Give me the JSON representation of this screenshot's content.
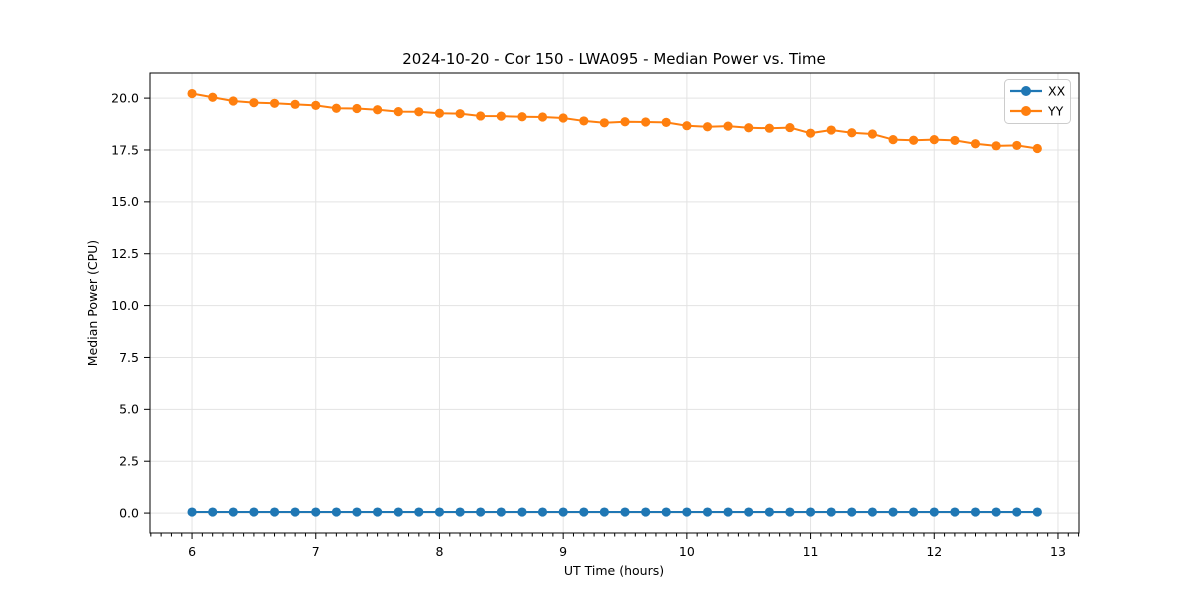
{
  "chart_data": {
    "type": "line",
    "title": "2024-10-20 - Cor 150 - LWA095 - Median Power vs. Time",
    "xlabel": "UT Time (hours)",
    "ylabel": "Median Power (CPU)",
    "xlim": [
      5.66,
      13.17
    ],
    "ylim": [
      -0.96,
      21.21
    ],
    "xticks": [
      6,
      7,
      8,
      9,
      10,
      11,
      12,
      13
    ],
    "xtick_labels": [
      "6",
      "7",
      "8",
      "9",
      "10",
      "11",
      "12",
      "13"
    ],
    "x_minor_tick_step": 0.0833333,
    "yticks": [
      0.0,
      2.5,
      5.0,
      7.5,
      10.0,
      12.5,
      15.0,
      17.5,
      20.0
    ],
    "ytick_labels": [
      "0.0",
      "2.5",
      "5.0",
      "7.5",
      "10.0",
      "12.5",
      "15.0",
      "17.5",
      "20.0"
    ],
    "grid": true,
    "grid_color": "#e3e3e3",
    "spine_color": "#000000",
    "legend_position": "upper right",
    "x": [
      6.0,
      6.167,
      6.333,
      6.5,
      6.667,
      6.833,
      7.0,
      7.167,
      7.333,
      7.5,
      7.667,
      7.833,
      8.0,
      8.167,
      8.333,
      8.5,
      8.667,
      8.833,
      9.0,
      9.167,
      9.333,
      9.5,
      9.667,
      9.833,
      10.0,
      10.167,
      10.333,
      10.5,
      10.667,
      10.833,
      11.0,
      11.167,
      11.333,
      11.5,
      11.667,
      11.833,
      12.0,
      12.167,
      12.333,
      12.5,
      12.667,
      12.833
    ],
    "series": [
      {
        "name": "XX",
        "color": "#1f77b4",
        "values": [
          0.05,
          0.05,
          0.05,
          0.05,
          0.05,
          0.05,
          0.05,
          0.05,
          0.05,
          0.05,
          0.05,
          0.05,
          0.05,
          0.05,
          0.05,
          0.05,
          0.05,
          0.05,
          0.05,
          0.05,
          0.05,
          0.05,
          0.05,
          0.05,
          0.05,
          0.05,
          0.05,
          0.05,
          0.05,
          0.05,
          0.05,
          0.05,
          0.05,
          0.05,
          0.05,
          0.05,
          0.05,
          0.05,
          0.05,
          0.05,
          0.05,
          0.05
        ]
      },
      {
        "name": "YY",
        "color": "#ff7f0e",
        "values": [
          20.22,
          20.04,
          19.86,
          19.78,
          19.75,
          19.7,
          19.65,
          19.51,
          19.5,
          19.44,
          19.35,
          19.34,
          19.27,
          19.25,
          19.14,
          19.13,
          19.1,
          19.09,
          19.04,
          18.9,
          18.81,
          18.86,
          18.85,
          18.83,
          18.67,
          18.62,
          18.65,
          18.57,
          18.55,
          18.58,
          18.31,
          18.46,
          18.33,
          18.27,
          18.0,
          17.97,
          18.0,
          17.96,
          17.8,
          17.7,
          17.72,
          17.57
        ]
      }
    ]
  }
}
